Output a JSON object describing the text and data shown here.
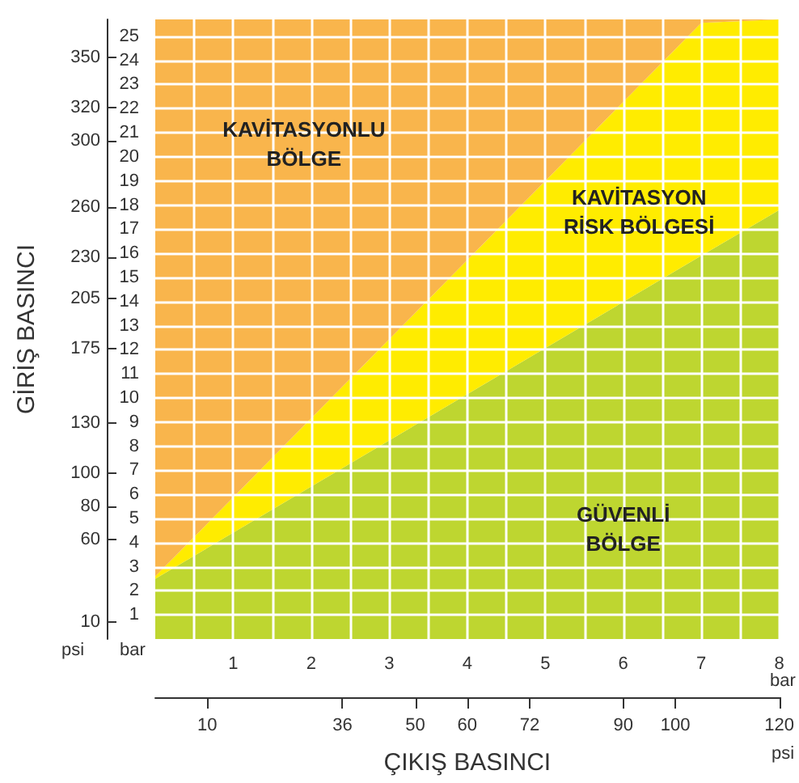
{
  "chart_data": {
    "type": "area",
    "stacked": true,
    "xlabel": "ÇIKIŞ BASINCI",
    "y2label": "GİRİŞ BASINCI",
    "x": [
      0,
      7,
      8
    ],
    "series": [
      {
        "color": "#bed630",
        "values": [
          2.5,
          15.9,
          17.8
        ]
      },
      {
        "color": "#ffec00",
        "values": [
          0.1,
          9.66,
          7.9
        ]
      },
      {
        "color": "#f9b54c",
        "values": [
          23.1,
          0.14,
          0
        ]
      }
    ],
    "xlim": [
      0,
      8
    ],
    "ylim": [
      0,
      25.7
    ],
    "xticks": [
      {
        "value": 0.5,
        "label": null
      },
      1,
      {
        "value": 1.5,
        "label": null
      },
      2,
      {
        "value": 2.5,
        "label": null
      },
      3,
      {
        "value": 3.5,
        "label": null
      },
      4,
      {
        "value": 4.5,
        "label": null
      },
      5,
      {
        "value": 5.5,
        "label": null
      },
      6,
      {
        "value": 6.5,
        "label": null
      },
      7,
      {
        "value": 7.5,
        "label": null
      },
      8
    ],
    "yticks": [
      1,
      2,
      3,
      4,
      5,
      6,
      7,
      8,
      9,
      10,
      11,
      12,
      13,
      14,
      15,
      16,
      17,
      18,
      19,
      20,
      21,
      22,
      23,
      24,
      25
    ],
    "y2lim": [
      0,
      373
    ],
    "y2ticks": [
      10,
      60,
      80,
      100,
      130,
      175,
      205,
      230,
      260,
      300,
      320,
      350
    ],
    "x2lim": [
      0,
      120
    ],
    "x2ticks": [
      10,
      36,
      50,
      60,
      72,
      90,
      100,
      120
    ],
    "grid": true,
    "annotations": [
      "KAVİTASYONLU\nBÖLGE",
      "KAVİTASYON\nRİSK BÖLGESİ",
      "GÜVENLİ\nBÖLGE",
      "psi",
      "bar",
      "bar",
      "psi"
    ]
  }
}
